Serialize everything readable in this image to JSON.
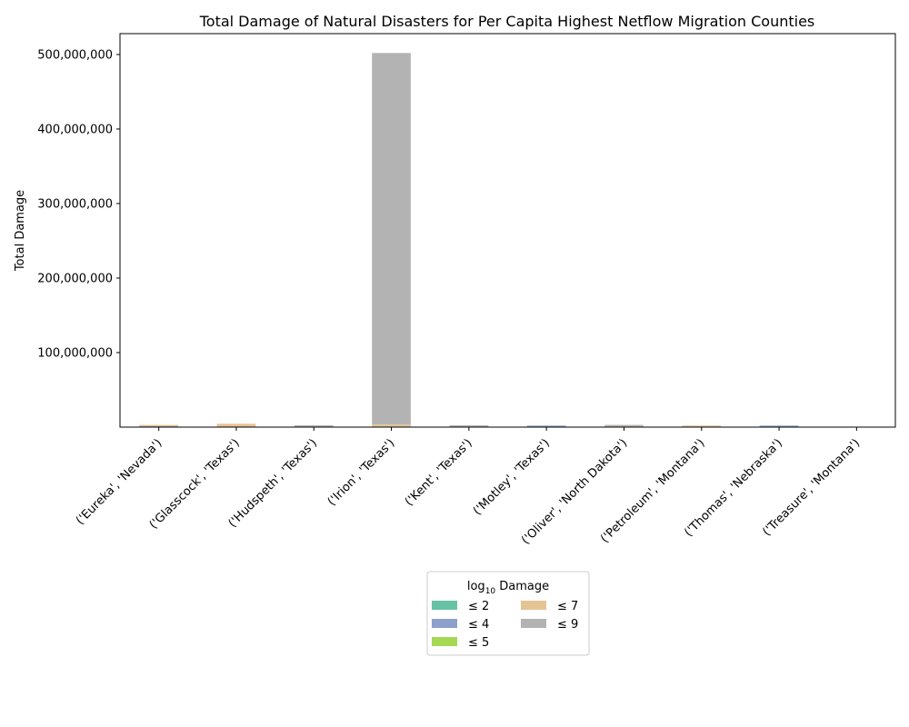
{
  "chart_data": {
    "type": "bar",
    "stacked": true,
    "title": "Total Damage of Natural Disasters for Per Capita Highest Netflow Migration Counties",
    "ylabel": "Total Damage",
    "xlabel": "",
    "ylim": [
      0,
      528000000
    ],
    "yticks": [
      100000000,
      200000000,
      300000000,
      400000000,
      500000000
    ],
    "ytick_labels": [
      "100,000,000",
      "200,000,000",
      "300,000,000",
      "400,000,000",
      "500,000,000"
    ],
    "grid": false,
    "legend_position": "below-center",
    "legend_title": "log10 Damage",
    "categories": [
      "('Eureka', 'Nevada')",
      "('Glasscock', 'Texas')",
      "('Hudspeth', 'Texas')",
      "('Irion', 'Texas')",
      "('Kent', 'Texas')",
      "('Motley', 'Texas')",
      "('Oliver', 'North Dakota')",
      "('Petroleum', 'Montana')",
      "('Thomas', 'Nebraska')",
      "('Treasure', 'Montana')"
    ],
    "series": [
      {
        "name": "≤ 2",
        "color": "#66c2a5",
        "values": [
          20,
          10,
          10,
          20,
          10,
          10,
          10,
          10,
          10,
          0
        ]
      },
      {
        "name": "≤ 4",
        "color": "#8da0cb",
        "values": [
          1000000,
          0,
          0,
          0,
          0,
          800000,
          0,
          0,
          900000,
          0
        ]
      },
      {
        "name": "≤ 5",
        "color": "#a6d854",
        "values": [
          0,
          0,
          0,
          0,
          0,
          0,
          0,
          0,
          0,
          0
        ]
      },
      {
        "name": "≤ 7",
        "color": "#e5c494",
        "values": [
          500000,
          4500000,
          500000,
          3500000,
          500000,
          0,
          1000000,
          1000000,
          0,
          0
        ]
      },
      {
        "name": "≤ 9",
        "color": "#b3b3b3",
        "values": [
          0,
          0,
          1500000,
          498500000,
          1500000,
          0,
          1500000,
          0,
          0,
          0
        ]
      }
    ]
  }
}
